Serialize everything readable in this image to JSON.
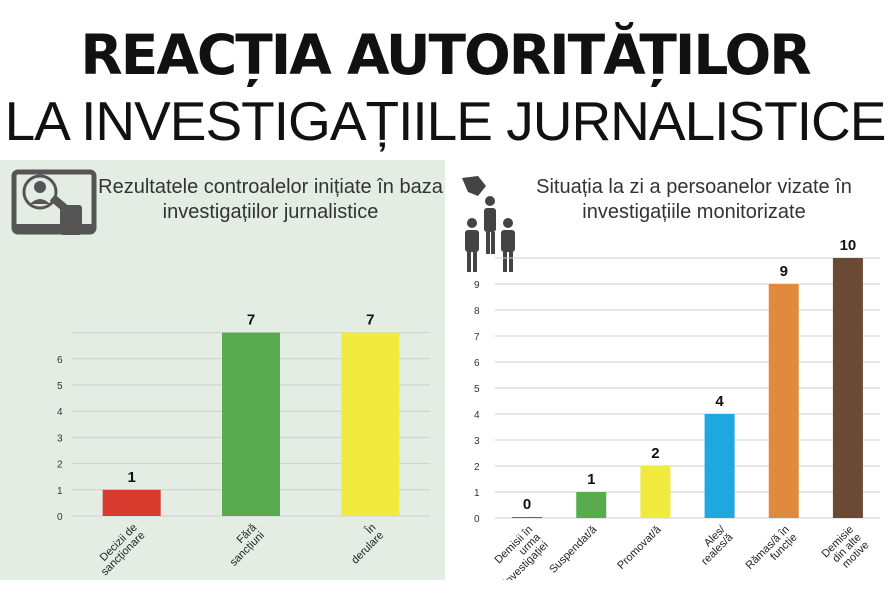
{
  "header": {
    "title_line1": "REACȚIA AUTORITĂȚILOR",
    "title_line2": "LA INVESTIGAȚIILE JURNALISTICE"
  },
  "panels": {
    "left_subtitle": "Rezultatele controalelor inițiate în baza investigațiilor jurnalistice",
    "right_subtitle": "Situația la zi a persoanelor vizate în investigațiile monitorizate"
  },
  "icons": {
    "left": "monitor-magnifier-icon",
    "right": "people-hand-icon"
  },
  "chart_data": [
    {
      "type": "bar",
      "title": "Rezultatele controalelor inițiate în baza investigațiilor jurnalistice",
      "categories": [
        "Decizii de sancționare",
        "Fără sancțiuni",
        "În derulare"
      ],
      "values": [
        1,
        7,
        7
      ],
      "colors": [
        "#d83a2e",
        "#5aaa50",
        "#f1ea3f"
      ],
      "yticks": [
        0,
        1,
        2,
        3,
        4,
        5,
        6
      ],
      "ylim": [
        0,
        7
      ],
      "grid": true,
      "data_labels": true
    },
    {
      "type": "bar",
      "title": "Situația la zi a persoanelor vizate în investigațiile monitorizate",
      "categories": [
        "Demisii în urma investigației",
        "Suspendat/ă",
        "Promovat/ă",
        "Ales/ reales/ă",
        "Rămas/ă în funcție",
        "Demisie din alte motive"
      ],
      "values": [
        0,
        1,
        2,
        4,
        9,
        10
      ],
      "colors": [
        "#d83a2e",
        "#5aaa50",
        "#f1ea3f",
        "#1ea7e0",
        "#e08a3c",
        "#6b4a35"
      ],
      "yticks": [
        0,
        1,
        2,
        3,
        4,
        5,
        6,
        7,
        8,
        9
      ],
      "ylim": [
        0,
        10
      ],
      "grid": true,
      "data_labels": true
    }
  ]
}
